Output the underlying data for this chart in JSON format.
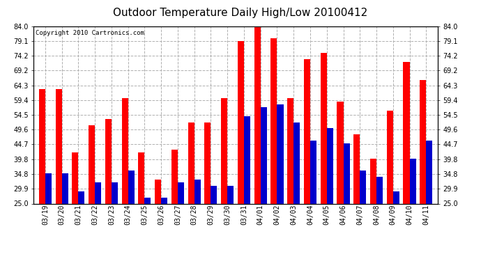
{
  "title": "Outdoor Temperature Daily High/Low 20100412",
  "copyright": "Copyright 2010 Cartronics.com",
  "dates": [
    "03/19",
    "03/20",
    "03/21",
    "03/22",
    "03/23",
    "03/24",
    "03/25",
    "03/26",
    "03/27",
    "03/28",
    "03/29",
    "03/30",
    "03/31",
    "04/01",
    "04/02",
    "04/03",
    "04/04",
    "04/05",
    "04/06",
    "04/07",
    "04/08",
    "04/09",
    "04/10",
    "04/11"
  ],
  "highs": [
    63,
    63,
    42,
    51,
    53,
    60,
    42,
    33,
    43,
    52,
    52,
    60,
    79,
    84,
    80,
    60,
    73,
    75,
    59,
    48,
    40,
    56,
    72,
    66
  ],
  "lows": [
    35,
    35,
    29,
    32,
    32,
    36,
    27,
    27,
    32,
    33,
    31,
    31,
    54,
    57,
    58,
    52,
    46,
    50,
    45,
    36,
    34,
    29,
    40,
    46
  ],
  "high_color": "#ff0000",
  "low_color": "#0000cc",
  "bg_color": "#ffffff",
  "plot_bg_color": "#ffffff",
  "grid_color": "#b0b0b0",
  "ylim": [
    25.0,
    84.0
  ],
  "yticks": [
    25.0,
    29.9,
    34.8,
    39.8,
    44.7,
    49.6,
    54.5,
    59.4,
    64.3,
    69.2,
    74.2,
    79.1,
    84.0
  ],
  "title_fontsize": 11,
  "copyright_fontsize": 6.5,
  "tick_fontsize": 7,
  "bar_width": 0.38
}
